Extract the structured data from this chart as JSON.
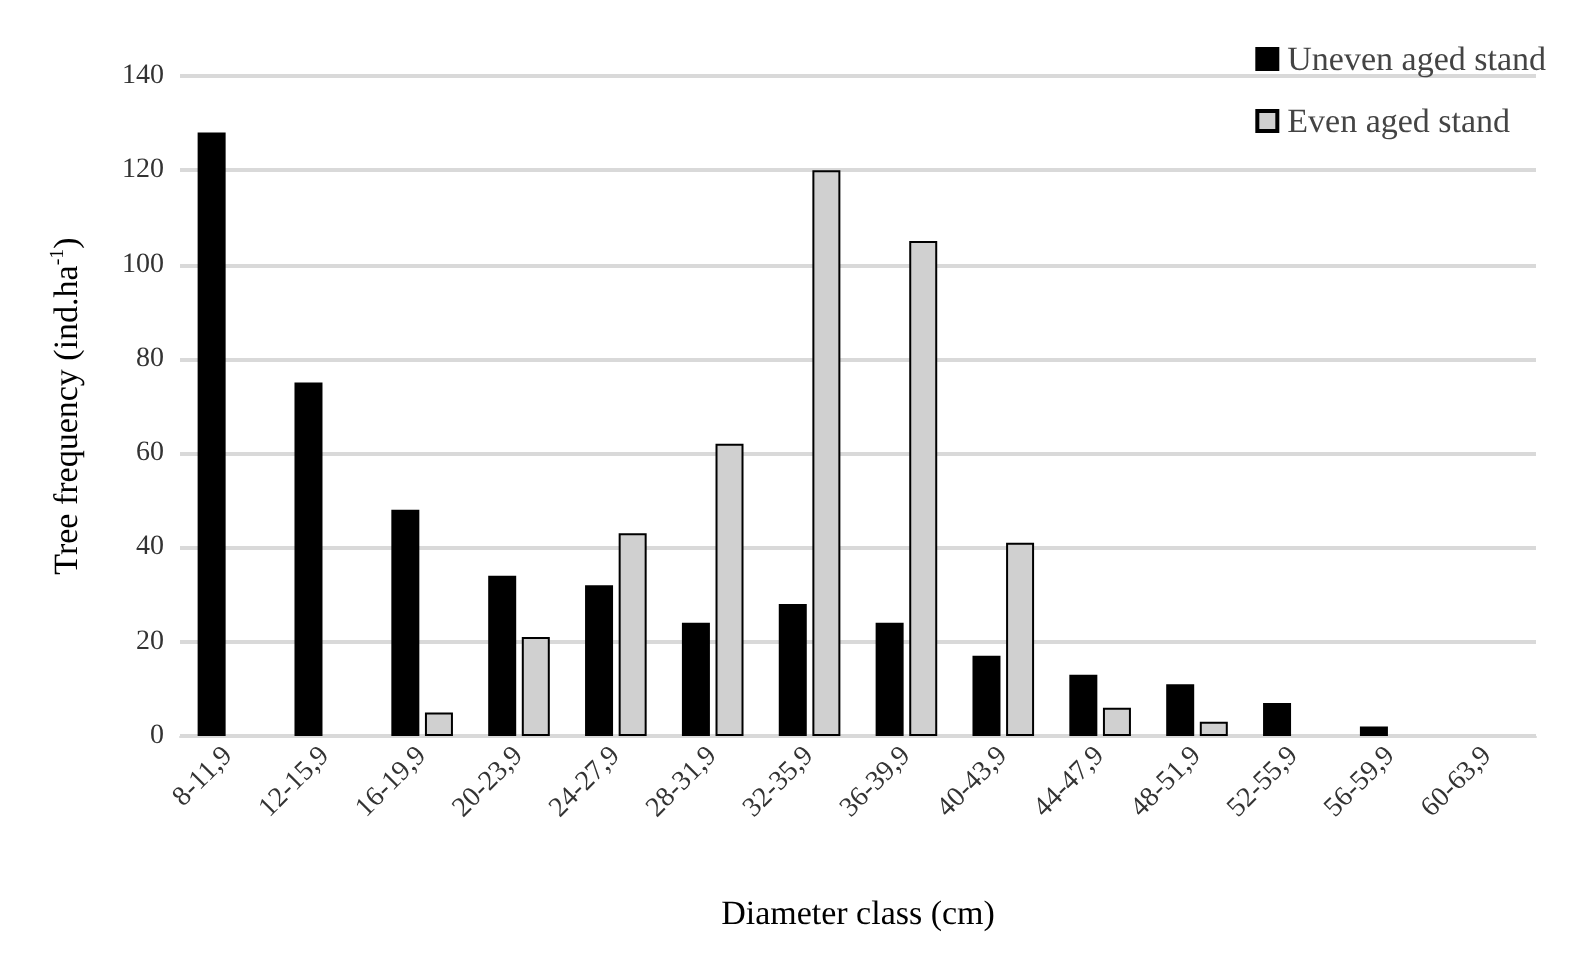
{
  "chart_data": {
    "type": "bar",
    "xlabel": "Diameter class (cm)",
    "ylabel": "Tree frequency (ind.ha$^{-1}$)",
    "categories": [
      "8-11,9",
      "12-15,9",
      "16-19,9",
      "20-23,9",
      "24-27,9",
      "28-31,9",
      "32-35,9",
      "36-39,9",
      "40-43,9",
      "44-47,9",
      "48-51,9",
      "52-55,9",
      "56-59,9",
      "60-63,9"
    ],
    "series": [
      {
        "name": "Uneven aged stand",
        "color": "#000000",
        "values": [
          128,
          75,
          48,
          34,
          32,
          24,
          28,
          24,
          17,
          13,
          11,
          7,
          2,
          0
        ]
      },
      {
        "name": "Even aged stand",
        "color": "#d0d0d0",
        "values": [
          0,
          0,
          5,
          21,
          43,
          62,
          120,
          105,
          41,
          6,
          3,
          0,
          0,
          0
        ]
      }
    ],
    "ylim": [
      0,
      140
    ],
    "yticks": [
      0,
      20,
      40,
      60,
      80,
      100,
      120,
      140
    ],
    "grid": "y",
    "legend": "top right"
  }
}
